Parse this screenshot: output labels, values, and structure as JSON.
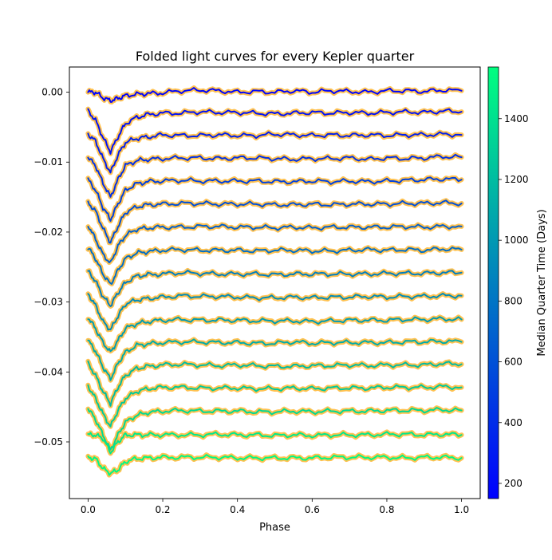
{
  "chart_data": {
    "type": "line",
    "title": "Folded light curves for every Kepler quarter",
    "xlabel": "Phase",
    "ylabel": "",
    "xlim": [
      -0.05,
      1.05
    ],
    "ylim": [
      -0.0581,
      0.0036
    ],
    "x_ticks": [
      0.0,
      0.2,
      0.4,
      0.6,
      0.8,
      1.0
    ],
    "x_tick_labels": [
      "0.0",
      "0.2",
      "0.4",
      "0.6",
      "0.8",
      "1.0"
    ],
    "y_ticks": [
      0.0,
      -0.01,
      -0.02,
      -0.03,
      -0.04,
      -0.05
    ],
    "y_tick_labels": [
      "0.00",
      "−0.01",
      "−0.02",
      "−0.03",
      "−0.04",
      "−0.05"
    ],
    "grid": false,
    "legend": "none",
    "phase_points": [
      0.0,
      0.02,
      0.04,
      0.06,
      0.08,
      0.1,
      0.13,
      0.16,
      0.2,
      0.25,
      0.3,
      0.35,
      0.4,
      0.45,
      0.5,
      0.55,
      0.6,
      0.65,
      0.7,
      0.75,
      0.8,
      0.85,
      0.9,
      0.95,
      1.0
    ],
    "band_color": "#ffb733",
    "series": [
      {
        "median_time": 170,
        "values": [
          0.0,
          0.0,
          -0.0008,
          -0.0012,
          -0.0009,
          -0.0005,
          -0.0003,
          -0.0002,
          -0.0001,
          0.0002,
          0.0003,
          0.0002,
          0.0,
          0.0001,
          0.0,
          0.0002,
          0.0,
          0.0002,
          0.0001,
          0.0,
          0.0002,
          0.0002,
          0.0001,
          0.0003,
          0.0002
        ]
      },
      {
        "median_time": 250,
        "values": [
          -0.0027,
          -0.004,
          -0.0065,
          -0.0085,
          -0.0064,
          -0.0045,
          -0.0036,
          -0.0032,
          -0.003,
          -0.003,
          -0.0028,
          -0.0029,
          -0.0029,
          -0.003,
          -0.0031,
          -0.003,
          -0.0029,
          -0.003,
          -0.0029,
          -0.003,
          -0.0029,
          -0.0028,
          -0.0029,
          -0.0027,
          -0.0028
        ]
      },
      {
        "median_time": 330,
        "values": [
          -0.006,
          -0.007,
          -0.0095,
          -0.0115,
          -0.009,
          -0.0072,
          -0.0066,
          -0.0064,
          -0.0061,
          -0.0062,
          -0.0062,
          -0.0061,
          -0.0062,
          -0.0062,
          -0.006,
          -0.0061,
          -0.0062,
          -0.0061,
          -0.0062,
          -0.0061,
          -0.0062,
          -0.0061,
          -0.0061,
          -0.006,
          -0.0061
        ]
      },
      {
        "median_time": 420,
        "values": [
          -0.0093,
          -0.0105,
          -0.013,
          -0.015,
          -0.0125,
          -0.0105,
          -0.0098,
          -0.0096,
          -0.0095,
          -0.0094,
          -0.0094,
          -0.0095,
          -0.0094,
          -0.0094,
          -0.0095,
          -0.0096,
          -0.0095,
          -0.0095,
          -0.0094,
          -0.0096,
          -0.0094,
          -0.0095,
          -0.0094,
          -0.0092,
          -0.0093
        ]
      },
      {
        "median_time": 510,
        "values": [
          -0.0125,
          -0.014,
          -0.0165,
          -0.0182,
          -0.016,
          -0.014,
          -0.0131,
          -0.0128,
          -0.0127,
          -0.0126,
          -0.0127,
          -0.0127,
          -0.0127,
          -0.0127,
          -0.0128,
          -0.0128,
          -0.0127,
          -0.0128,
          -0.0127,
          -0.0128,
          -0.0127,
          -0.0126,
          -0.0125,
          -0.0124,
          -0.0125
        ]
      },
      {
        "median_time": 590,
        "values": [
          -0.0158,
          -0.017,
          -0.0195,
          -0.0215,
          -0.0192,
          -0.0172,
          -0.0164,
          -0.0161,
          -0.016,
          -0.0159,
          -0.0159,
          -0.016,
          -0.016,
          -0.016,
          -0.0161,
          -0.0161,
          -0.016,
          -0.0161,
          -0.016,
          -0.016,
          -0.016,
          -0.0159,
          -0.0159,
          -0.0158,
          -0.0159
        ]
      },
      {
        "median_time": 680,
        "values": [
          -0.019,
          -0.021,
          -0.0232,
          -0.0245,
          -0.022,
          -0.0205,
          -0.0196,
          -0.0194,
          -0.0193,
          -0.0193,
          -0.0192,
          -0.0192,
          -0.0193,
          -0.0193,
          -0.0194,
          -0.0193,
          -0.0194,
          -0.0193,
          -0.0193,
          -0.0193,
          -0.0193,
          -0.0192,
          -0.0193,
          -0.0192,
          -0.0192
        ]
      },
      {
        "median_time": 760,
        "values": [
          -0.0222,
          -0.0238,
          -0.026,
          -0.0275,
          -0.0255,
          -0.0238,
          -0.023,
          -0.0228,
          -0.0226,
          -0.0225,
          -0.0226,
          -0.0226,
          -0.0226,
          -0.0227,
          -0.0226,
          -0.0226,
          -0.0227,
          -0.0227,
          -0.0226,
          -0.0225,
          -0.0226,
          -0.0225,
          -0.0226,
          -0.0224,
          -0.0225
        ]
      },
      {
        "median_time": 850,
        "values": [
          -0.0256,
          -0.027,
          -0.0292,
          -0.0305,
          -0.0287,
          -0.0272,
          -0.0263,
          -0.0261,
          -0.026,
          -0.0258,
          -0.0259,
          -0.026,
          -0.026,
          -0.026,
          -0.0261,
          -0.026,
          -0.026,
          -0.026,
          -0.026,
          -0.026,
          -0.0259,
          -0.0259,
          -0.0259,
          -0.0258,
          -0.0258
        ]
      },
      {
        "median_time": 930,
        "values": [
          -0.0288,
          -0.0305,
          -0.0328,
          -0.034,
          -0.032,
          -0.0303,
          -0.0297,
          -0.0295,
          -0.0293,
          -0.0291,
          -0.0292,
          -0.0292,
          -0.0293,
          -0.0294,
          -0.0294,
          -0.0293,
          -0.0294,
          -0.0293,
          -0.0293,
          -0.0292,
          -0.0293,
          -0.0292,
          -0.0292,
          -0.0291,
          -0.0291
        ]
      },
      {
        "median_time": 1020,
        "values": [
          -0.0322,
          -0.0338,
          -0.0358,
          -0.0372,
          -0.0355,
          -0.0338,
          -0.0331,
          -0.0328,
          -0.0326,
          -0.0325,
          -0.0326,
          -0.0326,
          -0.0326,
          -0.0327,
          -0.0327,
          -0.0327,
          -0.0328,
          -0.0327,
          -0.0326,
          -0.0326,
          -0.0326,
          -0.0325,
          -0.0325,
          -0.0324,
          -0.0325
        ]
      },
      {
        "median_time": 1100,
        "values": [
          -0.0355,
          -0.037,
          -0.0393,
          -0.041,
          -0.0388,
          -0.0372,
          -0.0362,
          -0.036,
          -0.0358,
          -0.0357,
          -0.0357,
          -0.0358,
          -0.0358,
          -0.0359,
          -0.0359,
          -0.0357,
          -0.0359,
          -0.0358,
          -0.0358,
          -0.0358,
          -0.0358,
          -0.0357,
          -0.0357,
          -0.0356,
          -0.0357
        ]
      },
      {
        "median_time": 1190,
        "values": [
          -0.0388,
          -0.0405,
          -0.0428,
          -0.0445,
          -0.0422,
          -0.0405,
          -0.0395,
          -0.0392,
          -0.039,
          -0.0389,
          -0.039,
          -0.0391,
          -0.039,
          -0.0391,
          -0.0392,
          -0.0392,
          -0.0391,
          -0.0391,
          -0.039,
          -0.0391,
          -0.039,
          -0.039,
          -0.039,
          -0.0388,
          -0.0389
        ]
      },
      {
        "median_time": 1270,
        "values": [
          -0.042,
          -0.0438,
          -0.046,
          -0.0478,
          -0.0455,
          -0.0438,
          -0.0428,
          -0.0424,
          -0.0422,
          -0.0422,
          -0.0423,
          -0.0423,
          -0.0423,
          -0.0424,
          -0.0424,
          -0.0423,
          -0.0424,
          -0.0423,
          -0.0423,
          -0.0423,
          -0.0422,
          -0.0422,
          -0.0422,
          -0.0421,
          -0.0422
        ]
      },
      {
        "median_time": 1360,
        "values": [
          -0.0452,
          -0.0468,
          -0.049,
          -0.0512,
          -0.049,
          -0.0472,
          -0.0462,
          -0.0458,
          -0.0456,
          -0.0455,
          -0.0456,
          -0.0456,
          -0.0456,
          -0.0457,
          -0.0457,
          -0.0456,
          -0.0457,
          -0.0456,
          -0.0456,
          -0.0456,
          -0.0455,
          -0.0455,
          -0.0455,
          -0.0454,
          -0.0455
        ]
      },
      {
        "median_time": 1440,
        "values": [
          -0.049,
          -0.049,
          -0.0495,
          -0.0515,
          -0.05,
          -0.049,
          -0.049,
          -0.049,
          -0.049,
          -0.049,
          -0.049,
          -0.0489,
          -0.049,
          -0.049,
          -0.0491,
          -0.049,
          -0.0491,
          -0.049,
          -0.049,
          -0.049,
          -0.0489,
          -0.0489,
          -0.049,
          -0.0489,
          -0.049
        ]
      },
      {
        "median_time": 1530,
        "values": [
          -0.0522,
          -0.0524,
          -0.0538,
          -0.0545,
          -0.054,
          -0.0528,
          -0.0524,
          -0.0523,
          -0.0522,
          -0.0522,
          -0.0522,
          -0.0522,
          -0.0523,
          -0.0523,
          -0.0523,
          -0.0523,
          -0.0523,
          -0.0522,
          -0.0522,
          -0.0522,
          -0.0522,
          -0.0523,
          -0.0522,
          -0.0522,
          -0.0523
        ]
      }
    ],
    "colorbar": {
      "label": "Median Quarter Time (Days)",
      "range": [
        150,
        1570
      ],
      "ticks": [
        200,
        400,
        600,
        800,
        1000,
        1200,
        1400
      ],
      "tick_labels": [
        "200",
        "400",
        "600",
        "800",
        "1000",
        "1200",
        "1400"
      ],
      "colormap": "winter",
      "color_low": "#0000ff",
      "color_high": "#00ff80"
    }
  }
}
